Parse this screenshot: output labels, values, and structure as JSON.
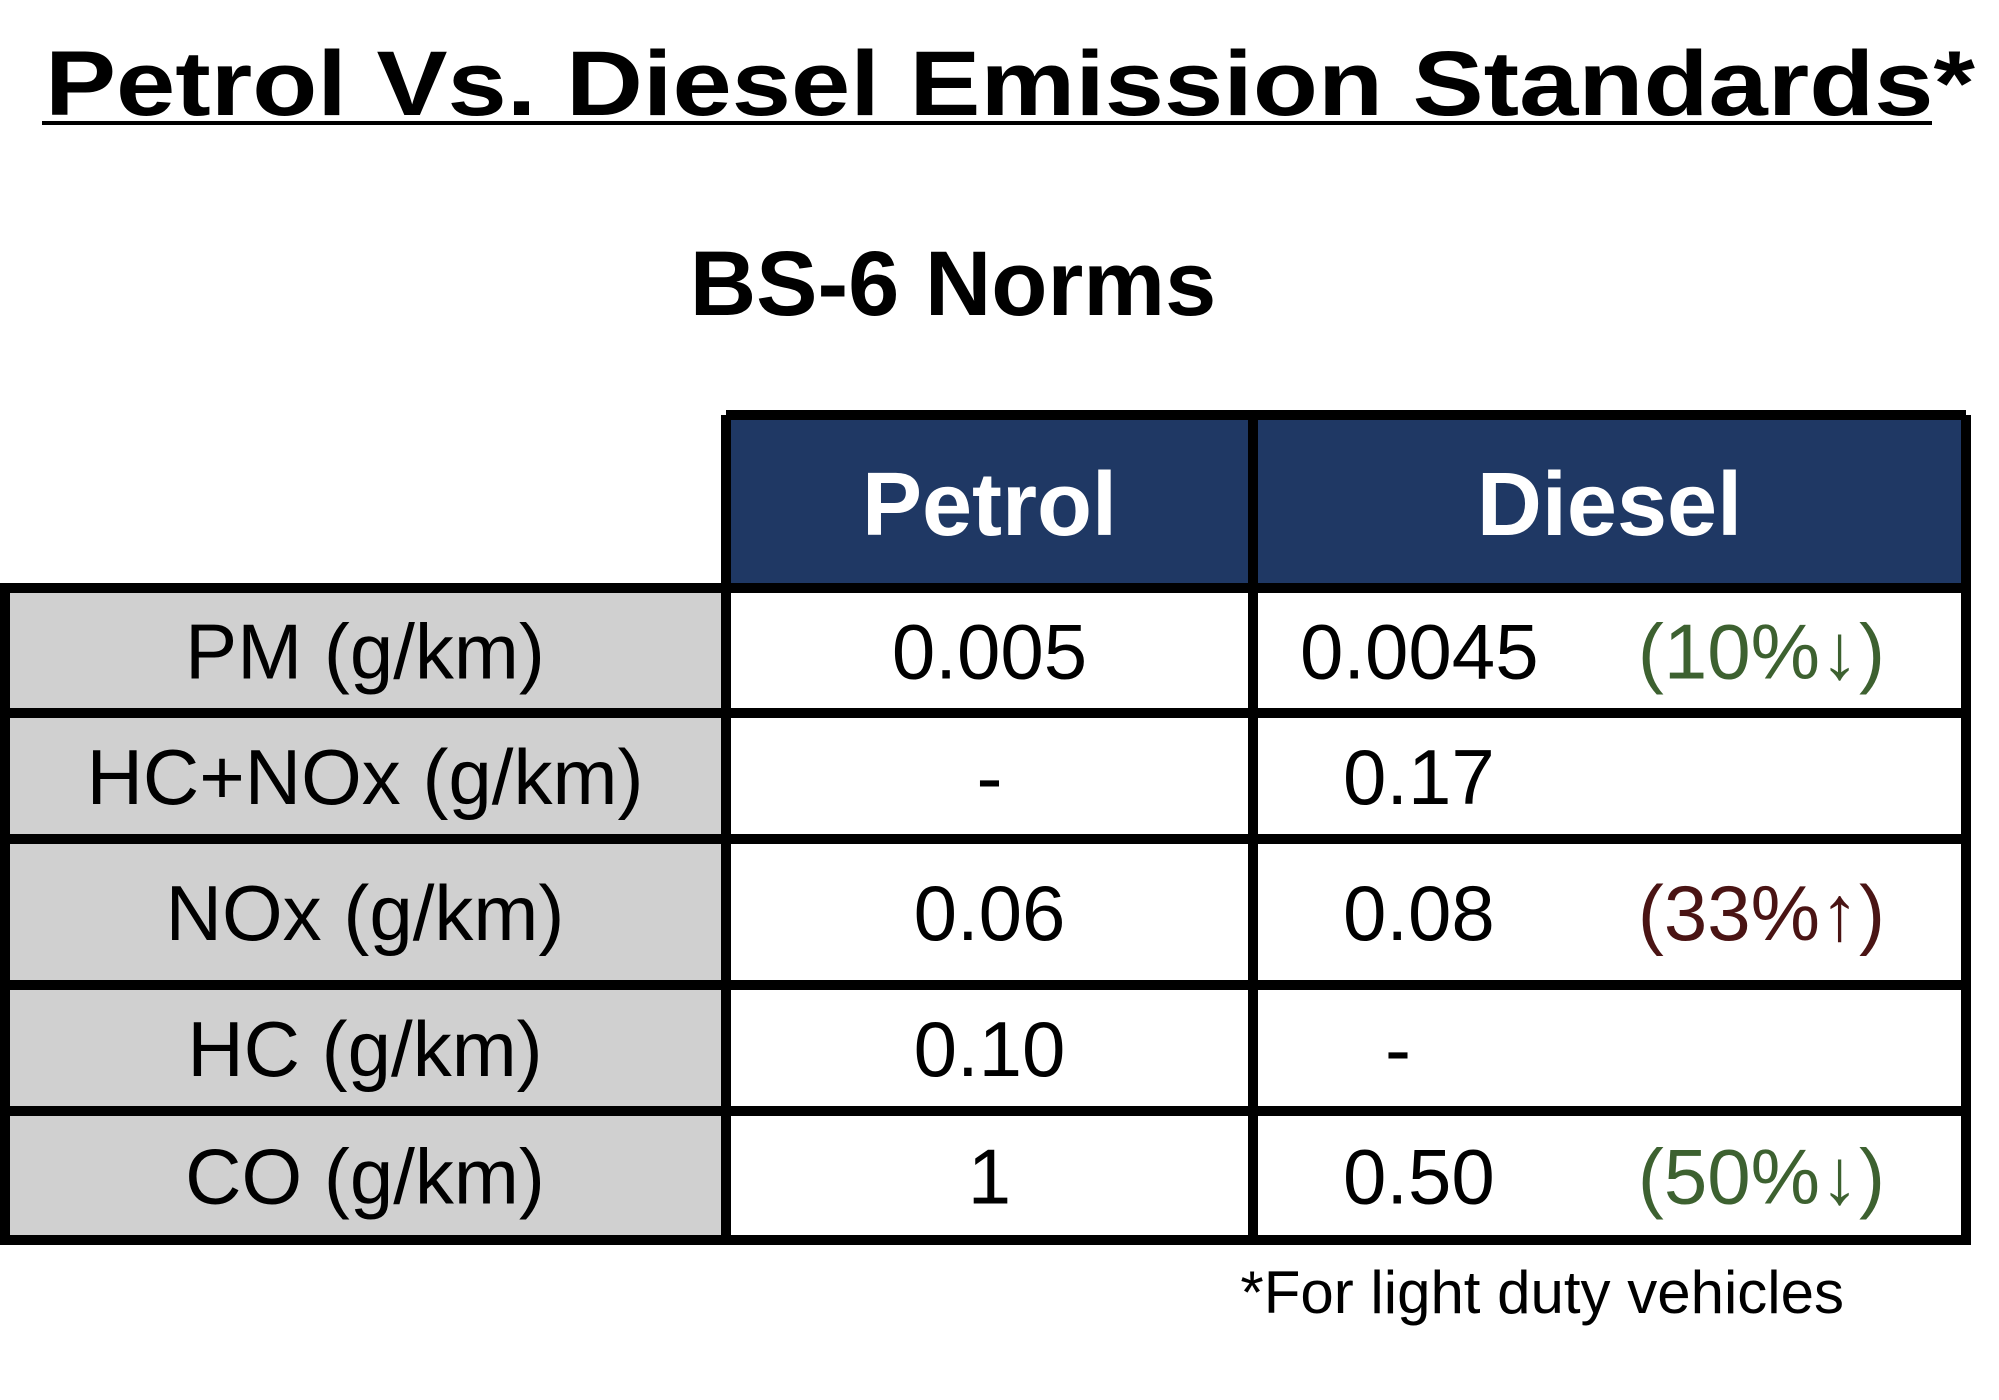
{
  "title": "Petrol Vs. Diesel Emission Standards*",
  "subtitle": "BS-6 Norms",
  "table": {
    "columns": [
      "Petrol",
      "Diesel"
    ],
    "rows": [
      {
        "label": "PM (g/km)",
        "petrol": "0.005",
        "diesel": "0.0045",
        "change": "(10%↓)",
        "color": "#3d6130"
      },
      {
        "label": "HC+NOx (g/km)",
        "petrol": "-",
        "diesel": "0.17"
      },
      {
        "label": "NOx (g/km)",
        "petrol": "0.06",
        "diesel": "0.08",
        "change": "(33%↑)",
        "color": "#4a1414"
      },
      {
        "label": "HC (g/km)",
        "petrol": "0.10",
        "diesel": "-"
      },
      {
        "label": "CO (g/km)",
        "petrol": "1",
        "diesel": "0.50",
        "change": "(50%↓)",
        "color": "#3d6130"
      }
    ]
  },
  "footnote": "*For light duty vehicles"
}
